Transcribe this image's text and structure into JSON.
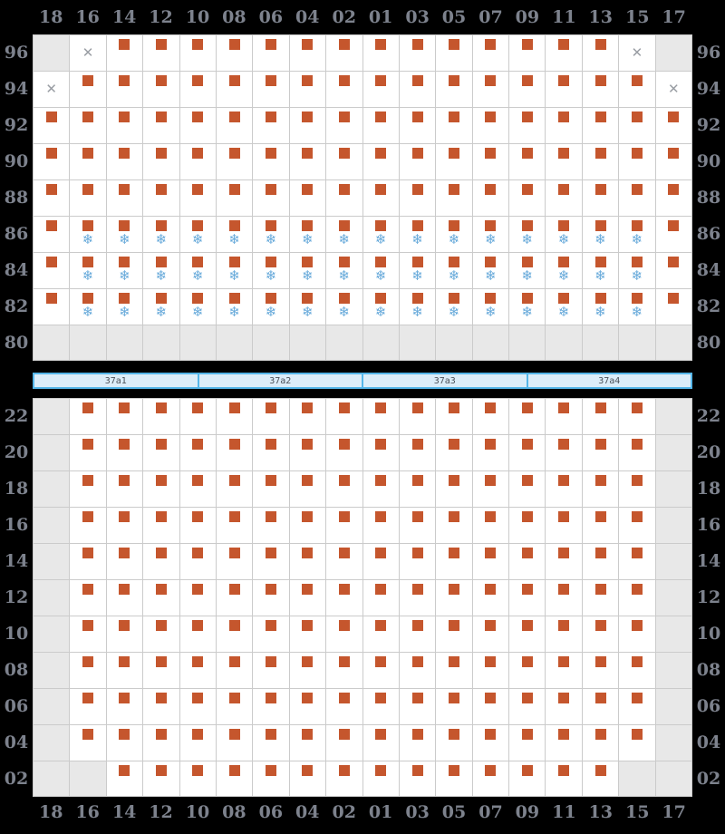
{
  "columns": [
    "18",
    "16",
    "14",
    "12",
    "10",
    "08",
    "06",
    "04",
    "02",
    "01",
    "03",
    "05",
    "07",
    "09",
    "11",
    "13",
    "15",
    "17"
  ],
  "icons": {
    "snowflake_glyph": "❄",
    "x_glyph": "✕",
    "seat_shape": "square"
  },
  "colors": {
    "bg": "#000000",
    "cellbg": "#ffffff",
    "celldis": "#e8e8e8",
    "border": "#cbcbcb",
    "label": "#7d828d",
    "seat": "#c5562d",
    "flake": "#66a9da",
    "xmark": "#9a9ea4",
    "barfill": "#dcedf9",
    "barborder": "#55b6e9",
    "bartext": "#4a5058"
  },
  "upper_grid": {
    "rows": [
      {
        "label": "96",
        "cells": [
          "d",
          "x",
          "s",
          "s",
          "s",
          "s",
          "s",
          "s",
          "s",
          "s",
          "s",
          "s",
          "s",
          "s",
          "s",
          "s",
          "x",
          "d"
        ]
      },
      {
        "label": "94",
        "cells": [
          "x",
          "s",
          "s",
          "s",
          "s",
          "s",
          "s",
          "s",
          "s",
          "s",
          "s",
          "s",
          "s",
          "s",
          "s",
          "s",
          "s",
          "x"
        ]
      },
      {
        "label": "92",
        "cells": [
          "s",
          "s",
          "s",
          "s",
          "s",
          "s",
          "s",
          "s",
          "s",
          "s",
          "s",
          "s",
          "s",
          "s",
          "s",
          "s",
          "s",
          "s"
        ]
      },
      {
        "label": "90",
        "cells": [
          "s",
          "s",
          "s",
          "s",
          "s",
          "s",
          "s",
          "s",
          "s",
          "s",
          "s",
          "s",
          "s",
          "s",
          "s",
          "s",
          "s",
          "s"
        ]
      },
      {
        "label": "88",
        "cells": [
          "s",
          "s",
          "s",
          "s",
          "s",
          "s",
          "s",
          "s",
          "s",
          "s",
          "s",
          "s",
          "s",
          "s",
          "s",
          "s",
          "s",
          "s"
        ]
      },
      {
        "label": "86",
        "cells": [
          "s",
          "f",
          "f",
          "f",
          "f",
          "f",
          "f",
          "f",
          "f",
          "f",
          "f",
          "f",
          "f",
          "f",
          "f",
          "f",
          "f",
          "s"
        ]
      },
      {
        "label": "84",
        "cells": [
          "s",
          "f",
          "f",
          "f",
          "f",
          "f",
          "f",
          "f",
          "f",
          "f",
          "f",
          "f",
          "f",
          "f",
          "f",
          "f",
          "f",
          "s"
        ]
      },
      {
        "label": "82",
        "cells": [
          "s",
          "f",
          "f",
          "f",
          "f",
          "f",
          "f",
          "f",
          "f",
          "f",
          "f",
          "f",
          "f",
          "f",
          "f",
          "f",
          "f",
          "s"
        ]
      },
      {
        "label": "80",
        "cells": [
          "d",
          "d",
          "d",
          "d",
          "d",
          "d",
          "d",
          "d",
          "d",
          "d",
          "d",
          "d",
          "d",
          "d",
          "d",
          "d",
          "d",
          "d"
        ]
      }
    ]
  },
  "section_bar": {
    "segments": [
      "37a1",
      "37a2",
      "37a3",
      "37a4"
    ]
  },
  "lower_grid": {
    "rows": [
      {
        "label": "22",
        "cells": [
          "d",
          "s",
          "s",
          "s",
          "s",
          "s",
          "s",
          "s",
          "s",
          "s",
          "s",
          "s",
          "s",
          "s",
          "s",
          "s",
          "s",
          "d"
        ]
      },
      {
        "label": "20",
        "cells": [
          "d",
          "s",
          "s",
          "s",
          "s",
          "s",
          "s",
          "s",
          "s",
          "s",
          "s",
          "s",
          "s",
          "s",
          "s",
          "s",
          "s",
          "d"
        ]
      },
      {
        "label": "18",
        "cells": [
          "d",
          "s",
          "s",
          "s",
          "s",
          "s",
          "s",
          "s",
          "s",
          "s",
          "s",
          "s",
          "s",
          "s",
          "s",
          "s",
          "s",
          "d"
        ]
      },
      {
        "label": "16",
        "cells": [
          "d",
          "s",
          "s",
          "s",
          "s",
          "s",
          "s",
          "s",
          "s",
          "s",
          "s",
          "s",
          "s",
          "s",
          "s",
          "s",
          "s",
          "d"
        ]
      },
      {
        "label": "14",
        "cells": [
          "d",
          "s",
          "s",
          "s",
          "s",
          "s",
          "s",
          "s",
          "s",
          "s",
          "s",
          "s",
          "s",
          "s",
          "s",
          "s",
          "s",
          "d"
        ]
      },
      {
        "label": "12",
        "cells": [
          "d",
          "s",
          "s",
          "s",
          "s",
          "s",
          "s",
          "s",
          "s",
          "s",
          "s",
          "s",
          "s",
          "s",
          "s",
          "s",
          "s",
          "d"
        ]
      },
      {
        "label": "10",
        "cells": [
          "d",
          "s",
          "s",
          "s",
          "s",
          "s",
          "s",
          "s",
          "s",
          "s",
          "s",
          "s",
          "s",
          "s",
          "s",
          "s",
          "s",
          "d"
        ]
      },
      {
        "label": "08",
        "cells": [
          "d",
          "s",
          "s",
          "s",
          "s",
          "s",
          "s",
          "s",
          "s",
          "s",
          "s",
          "s",
          "s",
          "s",
          "s",
          "s",
          "s",
          "d"
        ]
      },
      {
        "label": "06",
        "cells": [
          "d",
          "s",
          "s",
          "s",
          "s",
          "s",
          "s",
          "s",
          "s",
          "s",
          "s",
          "s",
          "s",
          "s",
          "s",
          "s",
          "s",
          "d"
        ]
      },
      {
        "label": "04",
        "cells": [
          "d",
          "s",
          "s",
          "s",
          "s",
          "s",
          "s",
          "s",
          "s",
          "s",
          "s",
          "s",
          "s",
          "s",
          "s",
          "s",
          "s",
          "d"
        ]
      },
      {
        "label": "02",
        "cells": [
          "d",
          "d",
          "s",
          "s",
          "s",
          "s",
          "s",
          "s",
          "s",
          "s",
          "s",
          "s",
          "s",
          "s",
          "s",
          "s",
          "d",
          "d"
        ]
      }
    ]
  }
}
